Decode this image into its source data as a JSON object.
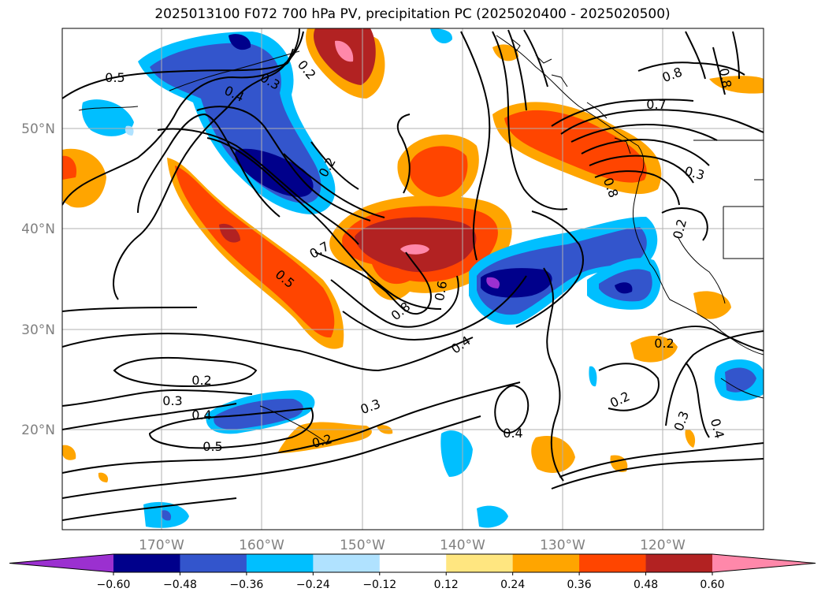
{
  "title": "2025013100 F072 700 hPa PV, precipitation PC (2025020400 - 2025020500)",
  "lat_labels": [
    "50°N",
    "40°N",
    "30°N",
    "20°N"
  ],
  "lon_labels": [
    "170°W",
    "160°W",
    "150°W",
    "140°W",
    "130°W",
    "120°W"
  ],
  "colorbar": {
    "ticks": [
      "−0.60",
      "−0.48",
      "−0.36",
      "−0.24",
      "−0.12",
      "0.12",
      "0.24",
      "0.36",
      "0.48",
      "0.60"
    ],
    "colors": [
      "#9b30d0",
      "#00008b",
      "#3355cc",
      "#00bfff",
      "#b0e2ff",
      "#ffffff",
      "#ffe680",
      "#ffa500",
      "#ff4500",
      "#b22222",
      "#ff88aa"
    ]
  },
  "contour_labels": [
    "0.5",
    "0.4",
    "0.3",
    "0.2",
    "0.2",
    "0.8",
    "0.8",
    "0.7",
    "0.3",
    "0.8",
    "0.2",
    "0.7",
    "0.5",
    "0.8",
    "0.6",
    "0.4",
    "0.2",
    "0.2",
    "0.3",
    "0.4",
    "0.5",
    "0.2",
    "0.3",
    "0.4",
    "0.2",
    "0.3",
    "0.4"
  ]
}
